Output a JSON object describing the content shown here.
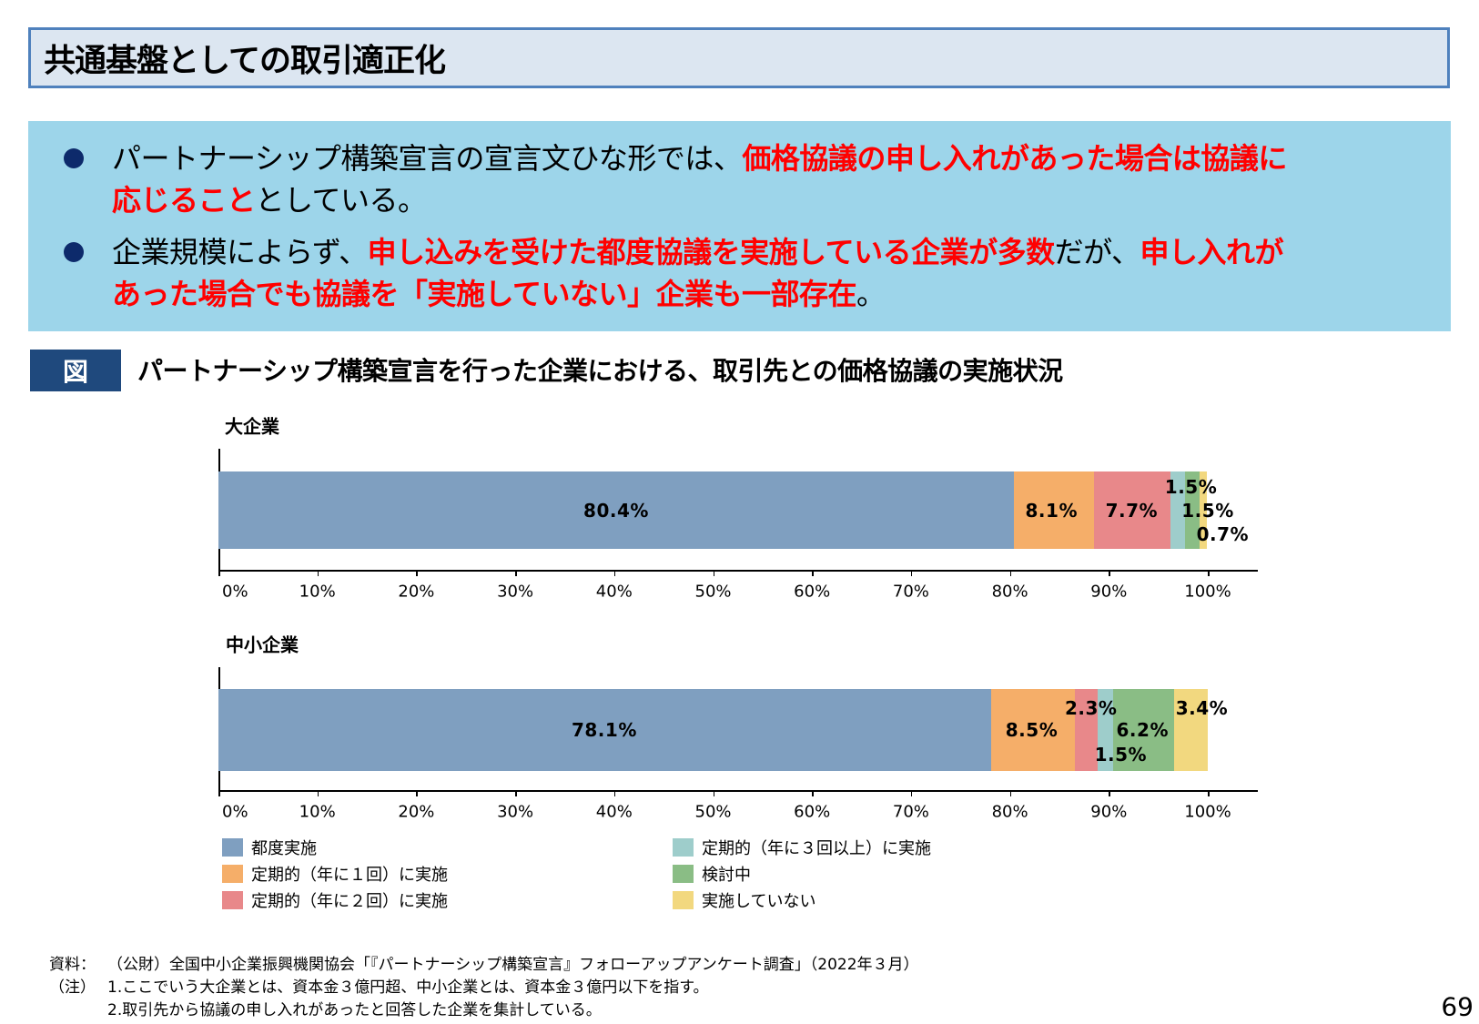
{
  "header": {
    "title": "共通基盤としての取引適正化"
  },
  "summary": {
    "bullets": [
      {
        "lines": [
          [
            {
              "text": "パートナーシップ構築宣言の宣言文ひな形では、",
              "emphasis": false
            },
            {
              "text": "価格協議の申し入れがあった場合は協議に",
              "emphasis": true
            }
          ],
          [
            {
              "text": "応じること",
              "emphasis": true
            },
            {
              "text": "としている。",
              "emphasis": false
            }
          ]
        ]
      },
      {
        "lines": [
          [
            {
              "text": "企業規模によらず、",
              "emphasis": false
            },
            {
              "text": "申し込みを受けた都度協議を実施している企業が多数",
              "emphasis": true
            },
            {
              "text": "だが、",
              "emphasis": false
            },
            {
              "text": "申し入れが",
              "emphasis": true
            }
          ],
          [
            {
              "text": "あった場合でも協議を「実施していない」企業も一部存在",
              "emphasis": true
            },
            {
              "text": "。",
              "emphasis": false
            }
          ]
        ]
      }
    ]
  },
  "figure": {
    "badge": "図",
    "title": "パートナーシップ構築宣言を行った企業における、取引先との価格協議の実施状況"
  },
  "chart_data": [
    {
      "type": "bar",
      "orientation": "horizontal",
      "stacked": true,
      "title": "大企業",
      "categories": [
        "大企業"
      ],
      "xlim": [
        0,
        100
      ],
      "xticks": [
        "0%",
        "10%",
        "20%",
        "30%",
        "40%",
        "50%",
        "60%",
        "70%",
        "80%",
        "90%",
        "100%"
      ],
      "grid": false,
      "series": [
        {
          "name": "都度実施",
          "values": [
            80.4
          ],
          "color": "#7f9fc0"
        },
        {
          "name": "定期的（年に１回）に実施",
          "values": [
            8.1
          ],
          "color": "#f5ae69"
        },
        {
          "name": "定期的（年に２回）に実施",
          "values": [
            7.7
          ],
          "color": "#e8888a"
        },
        {
          "name": "定期的（年に３回以上）に実施",
          "values": [
            1.5
          ],
          "color": "#9ecdcb"
        },
        {
          "name": "検討中",
          "values": [
            1.5
          ],
          "color": "#8abd85"
        },
        {
          "name": "実施していない",
          "values": [
            0.7
          ],
          "color": "#f2d87f"
        }
      ],
      "data_labels": [
        {
          "text": "80.4%",
          "x": 40.2,
          "dy": 0
        },
        {
          "text": "8.1%",
          "x": 84.2,
          "dy": 0
        },
        {
          "text": "7.7%",
          "x": 92.3,
          "dy": 0
        },
        {
          "text": "1.5%",
          "x": 98.3,
          "dy": -26
        },
        {
          "text": "1.5%",
          "x": 100.0,
          "dy": 0
        },
        {
          "text": "0.7%",
          "x": 101.5,
          "dy": 26
        }
      ]
    },
    {
      "type": "bar",
      "orientation": "horizontal",
      "stacked": true,
      "title": "中小企業",
      "categories": [
        "中小企業"
      ],
      "xlim": [
        0,
        100
      ],
      "xticks": [
        "0%",
        "10%",
        "20%",
        "30%",
        "40%",
        "50%",
        "60%",
        "70%",
        "80%",
        "90%",
        "100%"
      ],
      "grid": false,
      "series": [
        {
          "name": "都度実施",
          "values": [
            78.1
          ],
          "color": "#7f9fc0"
        },
        {
          "name": "定期的（年に１回）に実施",
          "values": [
            8.5
          ],
          "color": "#f5ae69"
        },
        {
          "name": "定期的（年に２回）に実施",
          "values": [
            2.3
          ],
          "color": "#e8888a"
        },
        {
          "name": "定期的（年に３回以上）に実施",
          "values": [
            1.5
          ],
          "color": "#9ecdcb"
        },
        {
          "name": "検討中",
          "values": [
            6.2
          ],
          "color": "#8abd85"
        },
        {
          "name": "実施していない",
          "values": [
            3.4
          ],
          "color": "#f2d87f"
        }
      ],
      "data_labels": [
        {
          "text": "78.1%",
          "x": 39.0,
          "dy": 0
        },
        {
          "text": "8.5%",
          "x": 82.2,
          "dy": 0
        },
        {
          "text": "2.3%",
          "x": 88.2,
          "dy": -24
        },
        {
          "text": "1.5%",
          "x": 91.2,
          "dy": 27
        },
        {
          "text": "6.2%",
          "x": 93.4,
          "dy": 0
        },
        {
          "text": "3.4%",
          "x": 99.4,
          "dy": -24
        }
      ]
    }
  ],
  "legend": [
    {
      "label": "都度実施",
      "color": "#7f9fc0"
    },
    {
      "label": "定期的（年に１回）に実施",
      "color": "#f5ae69"
    },
    {
      "label": "定期的（年に２回）に実施",
      "color": "#e8888a"
    },
    {
      "label": "定期的（年に３回以上）に実施",
      "color": "#9ecdcb"
    },
    {
      "label": "検討中",
      "color": "#8abd85"
    },
    {
      "label": "実施していない",
      "color": "#f2d87f"
    }
  ],
  "footer": {
    "rows": [
      {
        "label": "資料：",
        "text": "（公財）全国中小企業振興機関協会「『パートナーシップ構築宣言』フォローアップアンケート調査」（2022年３月）"
      },
      {
        "label": "（注）",
        "text": "1.ここでいう大企業とは、資本金３億円超、中小企業とは、資本金３億円以下を指す。"
      },
      {
        "label": "",
        "text": "2.取引先から協議の申し入れがあったと回答した企業を集計している。"
      }
    ]
  },
  "page_number": "69"
}
